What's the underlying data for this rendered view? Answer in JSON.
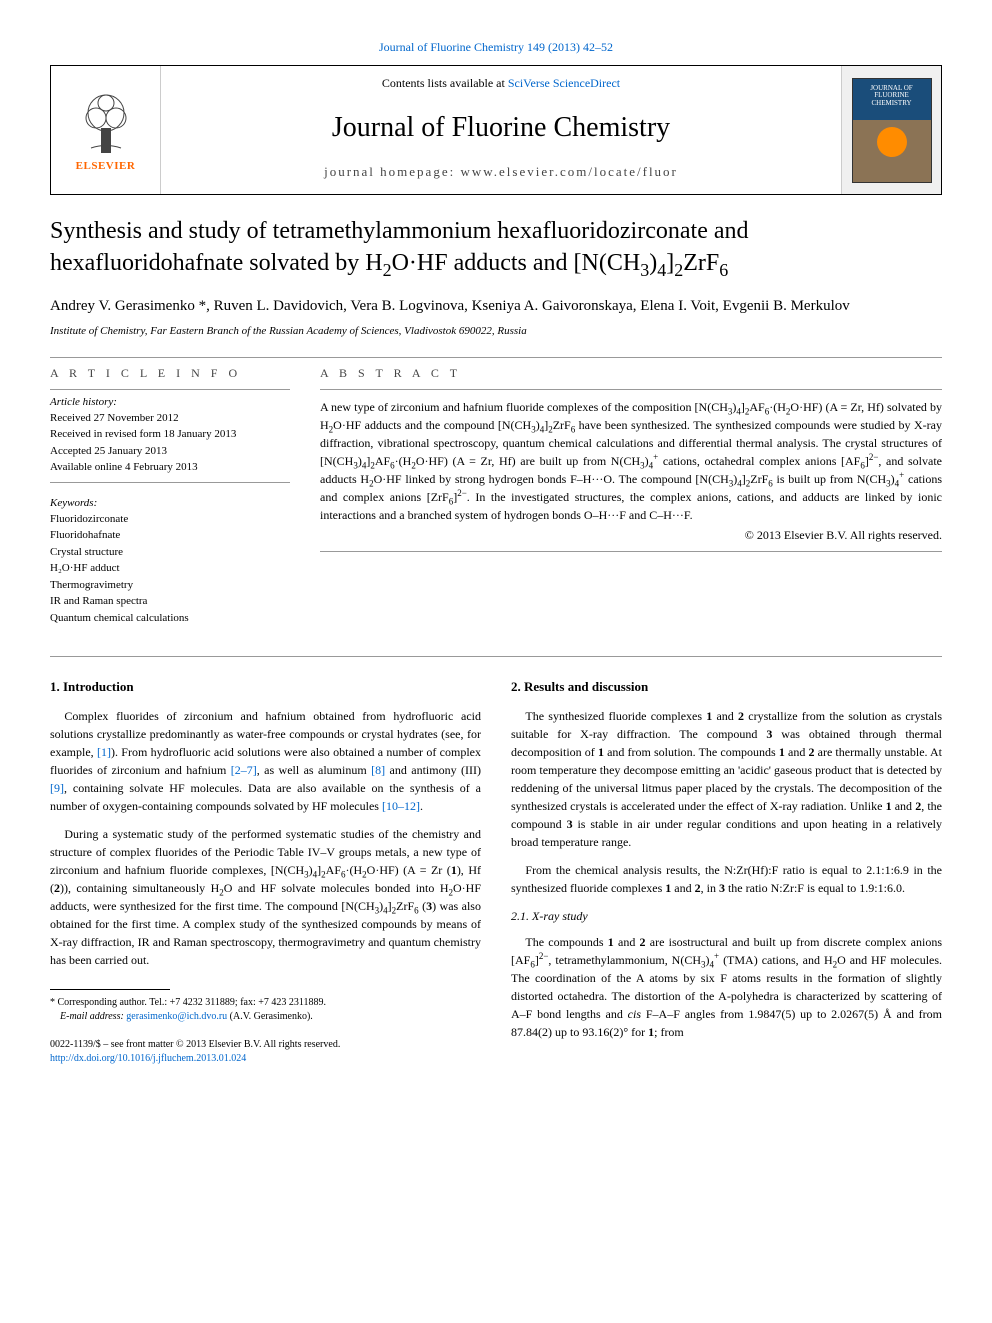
{
  "top_citation": "Journal of Fluorine Chemistry 149 (2013) 42–52",
  "header": {
    "contents_prefix": "Contents lists available at ",
    "contents_link": "SciVerse ScienceDirect",
    "journal_name": "Journal of Fluorine Chemistry",
    "homepage_prefix": "journal homepage: ",
    "homepage_url": "www.elsevier.com/locate/fluor",
    "elsevier_label": "ELSEVIER",
    "cover_title": "JOURNAL OF\nFLUORINE\nCHEMISTRY"
  },
  "title_html": "Synthesis and study of tetramethylammonium hexafluoridozirconate and hexafluoridohafnate solvated by H<sub>2</sub>O·HF adducts and [N(CH<sub>3</sub>)<sub>4</sub>]<sub>2</sub>ZrF<sub>6</sub>",
  "authors": "Andrey V. Gerasimenko *, Ruven L. Davidovich, Vera B. Logvinova, Kseniya A. Gaivoronskaya, Elena I. Voit, Evgenii B. Merkulov",
  "affiliation": "Institute of Chemistry, Far Eastern Branch of the Russian Academy of Sciences, Vladivostok 690022, Russia",
  "article_info": {
    "heading": "A R T I C L E   I N F O",
    "history_heading": "Article history:",
    "history": [
      "Received 27 November 2012",
      "Received in revised form 18 January 2013",
      "Accepted 25 January 2013",
      "Available online 4 February 2013"
    ],
    "keywords_heading": "Keywords:",
    "keywords": [
      "Fluoridozirconate",
      "Fluoridohafnate",
      "Crystal structure",
      "H₂O·HF adduct",
      "Thermogravimetry",
      "IR and Raman spectra",
      "Quantum chemical calculations"
    ]
  },
  "abstract": {
    "heading": "A B S T R A C T",
    "text_html": "A new type of zirconium and hafnium fluoride complexes of the composition [N(CH<sub>3</sub>)<sub>4</sub>]<sub>2</sub>AF<sub>6</sub>·(H<sub>2</sub>O·HF) (A = Zr, Hf) solvated by H<sub>2</sub>O·HF adducts and the compound [N(CH<sub>3</sub>)<sub>4</sub>]<sub>2</sub>ZrF<sub>6</sub> have been synthesized. The synthesized compounds were studied by X-ray diffraction, vibrational spectroscopy, quantum chemical calculations and differential thermal analysis. The crystal structures of [N(CH<sub>3</sub>)<sub>4</sub>]<sub>2</sub>AF<sub>6</sub>·(H<sub>2</sub>O·HF) (A = Zr, Hf) are built up from N(CH<sub>3</sub>)<sub>4</sub><sup>+</sup> cations, octahedral complex anions [AF<sub>6</sub>]<sup>2−</sup>, and solvate adducts H<sub>2</sub>O·HF linked by strong hydrogen bonds F–H···O. The compound [N(CH<sub>3</sub>)<sub>4</sub>]<sub>2</sub>ZrF<sub>6</sub> is built up from N(CH<sub>3</sub>)<sub>4</sub><sup>+</sup> cations and complex anions [ZrF<sub>6</sub>]<sup>2−</sup>. In the investigated structures, the complex anions, cations, and adducts are linked by ionic interactions and a branched system of hydrogen bonds O–H···F and C–H···F.",
    "copyright": "© 2013 Elsevier B.V. All rights reserved."
  },
  "sections": {
    "intro_heading": "1. Introduction",
    "intro_p1_html": "Complex fluorides of zirconium and hafnium obtained from hydrofluoric acid solutions crystallize predominantly as water-free compounds or crystal hydrates (see, for example, <span class=\"ref-link\">[1]</span>). From hydrofluoric acid solutions were also obtained a number of complex fluorides of zirconium and hafnium <span class=\"ref-link\">[2–7]</span>, as well as aluminum <span class=\"ref-link\">[8]</span> and antimony (III) <span class=\"ref-link\">[9]</span>, containing solvate HF molecules. Data are also available on the synthesis of a number of oxygen-containing compounds solvated by HF molecules <span class=\"ref-link\">[10–12]</span>.",
    "intro_p2_html": "During a systematic study of the performed systematic studies of the chemistry and structure of complex fluorides of the Periodic Table IV–V groups metals, a new type of zirconium and hafnium fluoride complexes, [N(CH<sub>3</sub>)<sub>4</sub>]<sub>2</sub>AF<sub>6</sub>·(H<sub>2</sub>O·HF) (A = Zr (<b>1</b>), Hf (<b>2</b>)), containing simultaneously H<sub>2</sub>O and HF solvate molecules bonded into H<sub>2</sub>O·HF adducts, were synthesized for the first time. The compound [N(CH<sub>3</sub>)<sub>4</sub>]<sub>2</sub>ZrF<sub>6</sub> (<b>3</b>) was also obtained for the first time. A complex study of the synthesized compounds by means of X-ray diffraction, IR and Raman spectroscopy, thermogravimetry and quantum chemistry has been carried out.",
    "results_heading": "2. Results and discussion",
    "results_p1_html": "The synthesized fluoride complexes <b>1</b> and <b>2</b> crystallize from the solution as crystals suitable for X-ray diffraction. The compound <b>3</b> was obtained through thermal decomposition of <b>1</b> and from solution. The compounds <b>1</b> and <b>2</b> are thermally unstable. At room temperature they decompose emitting an 'acidic' gaseous product that is detected by reddening of the universal litmus paper placed by the crystals. The decomposition of the synthesized crystals is accelerated under the effect of X-ray radiation. Unlike <b>1</b> and <b>2</b>, the compound <b>3</b> is stable in air under regular conditions and upon heating in a relatively broad temperature range.",
    "results_p2_html": "From the chemical analysis results, the N:Zr(Hf):F ratio is equal to 2.1:1:6.9 in the synthesized fluoride complexes <b>1</b> and <b>2</b>, in <b>3</b> the ratio N:Zr:F is equal to 1.9:1:6.0.",
    "xray_heading": "2.1. X-ray study",
    "xray_p1_html": "The compounds <b>1</b> and <b>2</b> are isostructural and built up from discrete complex anions [AF<sub>6</sub>]<sup>2−</sup>, tetramethylammonium, N(CH<sub>3</sub>)<sub>4</sub><sup>+</sup> (TMA) cations, and H<sub>2</sub>O and HF molecules. The coordination of the A atoms by six F atoms results in the formation of slightly distorted octahedra. The distortion of the A-polyhedra is characterized by scattering of A–F bond lengths and <i>cis</i> F–A–F angles from 1.9847(5) up to 2.0267(5) Å and from 87.84(2) up to 93.16(2)° for <b>1</b>; from"
  },
  "footnote": {
    "corr_html": "* Corresponding author. Tel.: +7 4232 311889; fax: +7 423 2311889.",
    "email_label": "E-mail address: ",
    "email": "gerasimenko@ich.dvo.ru",
    "email_suffix": " (A.V. Gerasimenko)."
  },
  "bottom": {
    "issn_line": "0022-1139/$ – see front matter © 2013 Elsevier B.V. All rights reserved.",
    "doi": "http://dx.doi.org/10.1016/j.jfluchem.2013.01.024"
  },
  "colors": {
    "link": "#0066cc",
    "elsevier_orange": "#ff6600",
    "text": "#000000",
    "divider": "#999999"
  }
}
